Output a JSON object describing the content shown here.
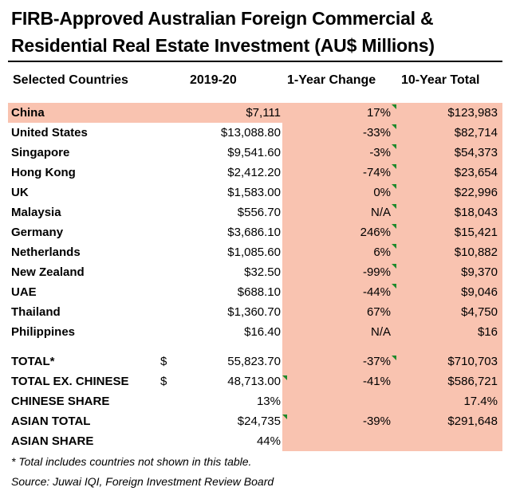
{
  "title": {
    "line1": "FIRB-Approved Australian Foreign Commercial &",
    "line2": "Residential Real Estate Investment (AU$ Millions)"
  },
  "headers": {
    "country": "Selected Countries",
    "year": "2019-20",
    "change": "1-Year Change",
    "total": "10-Year Total"
  },
  "rows": [
    {
      "name": "China",
      "dollar": "",
      "value": "$7,111",
      "change": "17%",
      "total": "$123,983"
    },
    {
      "name": "United States",
      "dollar": "",
      "value": "$13,088.80",
      "change": "-33%",
      "total": "$82,714"
    },
    {
      "name": "Singapore",
      "dollar": "",
      "value": "$9,541.60",
      "change": "-3%",
      "total": "$54,373"
    },
    {
      "name": "Hong Kong",
      "dollar": "",
      "value": "$2,412.20",
      "change": "-74%",
      "total": "$23,654"
    },
    {
      "name": "UK",
      "dollar": "",
      "value": "$1,583.00",
      "change": "0%",
      "total": "$22,996"
    },
    {
      "name": "Malaysia",
      "dollar": "",
      "value": "$556.70",
      "change": "N/A",
      "total": "$18,043"
    },
    {
      "name": "Germany",
      "dollar": "",
      "value": "$3,686.10",
      "change": "246%",
      "total": "$15,421"
    },
    {
      "name": "Netherlands",
      "dollar": "",
      "value": "$1,085.60",
      "change": "6%",
      "total": "$10,882"
    },
    {
      "name": "New Zealand",
      "dollar": "",
      "value": "$32.50",
      "change": "-99%",
      "total": "$9,370"
    },
    {
      "name": "UAE",
      "dollar": "",
      "value": "$688.10",
      "change": "-44%",
      "total": "$9,046"
    },
    {
      "name": "Thailand",
      "dollar": "",
      "value": "$1,360.70",
      "change": "67%",
      "total": "$4,750"
    },
    {
      "name": "Philippines",
      "dollar": "",
      "value": "$16.40",
      "change": "N/A",
      "total": "$16"
    }
  ],
  "summary": [
    {
      "name": "TOTAL*",
      "dollar": "$",
      "value": "55,823.70",
      "change": "-37%",
      "total": "$710,703"
    },
    {
      "name": "TOTAL EX. CHINESE",
      "dollar": "$",
      "value": "48,713.00",
      "change": "-41%",
      "total": "$586,721"
    },
    {
      "name": "CHINESE SHARE",
      "dollar": "",
      "value": "13%",
      "change": "",
      "total": "17.4%"
    },
    {
      "name": "ASIAN TOTAL",
      "dollar": "",
      "value": "$24,735",
      "change": "-39%",
      "total": "$291,648"
    },
    {
      "name": "ASIAN SHARE",
      "dollar": "",
      "value": "44%",
      "change": "",
      "total": ""
    }
  ],
  "footnotes": {
    "note": "* Total includes countries not shown in this table.",
    "source": "Source: Juwai IQI, Foreign Investment Review Board"
  },
  "colors": {
    "highlight": "#f9c3b0",
    "comment_marker": "#1f8a2c"
  }
}
